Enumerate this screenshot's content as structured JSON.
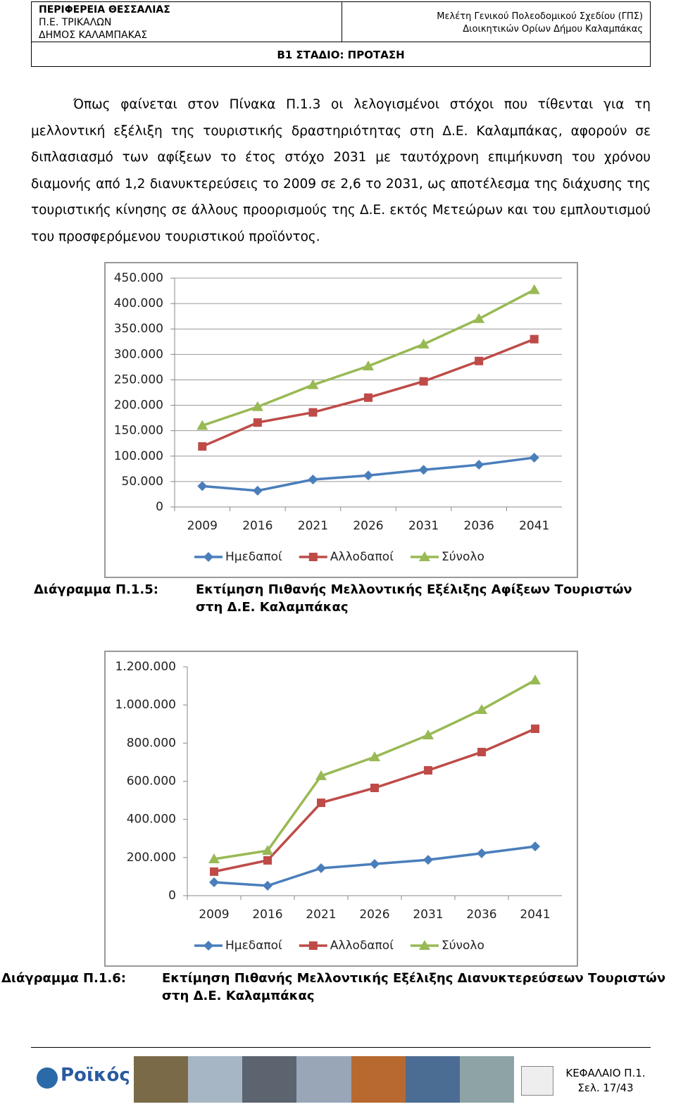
{
  "header": {
    "left": [
      "ΠΕΡΙΦΕΡΕΙΑ ΘΕΣΣΑΛΙΑΣ",
      "Π.Ε. ΤΡΙΚΑΛΩΝ",
      "ΔΗΜΟΣ ΚΑΛΑΜΠΑΚΑΣ"
    ],
    "right": [
      "Μελέτη Γενικού Πολεοδομικού Σχεδίου (ΓΠΣ)",
      "Διοικητικών Ορίων Δήμου Καλαμπάκας"
    ],
    "stage": "Β1 ΣΤΑΔΙΟ: ΠΡΟΤΑΣΗ"
  },
  "paragraph": "Όπως φαίνεται στον Πίνακα Π.1.3 οι λελογισμένοι στόχοι που τίθενται για τη μελλοντική εξέλιξη της τουριστικής δραστηριότητας στη Δ.Ε. Καλαμπάκας, αφορούν σε διπλασιασμό των αφίξεων το έτος στόχο 2031 με ταυτόχρονη επιμήκυνση του χρόνου διαμονής από 1,2 διανυκτερεύσεις το 2009 σε 2,6 το 2031, ως αποτέλεσμα της διάχυσης της τουριστικής κίνησης σε άλλους προορισμούς της Δ.Ε. εκτός Μετεώρων και του εμπλουτισμού του προσφερόμενου τουριστικού προϊόντος.",
  "captions": [
    {
      "label": "Διάγραμμα Π.1.5:",
      "text": "Εκτίμηση Πιθανής Μελλοντικής Εξέλιξης Αφίξεων Τουριστών στη Δ.Ε. Καλαμπάκας"
    },
    {
      "label": "Διάγραμμα Π.1.6:",
      "text": "Εκτίμηση Πιθανής Μελλοντικής Εξέλιξης Διανυκτερεύσεων Τουριστών στη Δ.Ε. Καλαμπάκας"
    }
  ],
  "chart_data": [
    {
      "type": "line",
      "categories": [
        "2009",
        "2016",
        "2021",
        "2026",
        "2031",
        "2036",
        "2041"
      ],
      "ylim": [
        0,
        450000
      ],
      "yticks": [
        0,
        {
          "value": 50000,
          "label": "50.000"
        },
        {
          "value": 100000,
          "label": "100.000"
        },
        {
          "value": 150000,
          "label": "150.000"
        },
        {
          "value": 200000,
          "label": "200.000"
        },
        {
          "value": 250000,
          "label": "250.000"
        },
        {
          "value": 300000,
          "label": "300.000"
        },
        {
          "value": 350000,
          "label": "350.000"
        },
        {
          "value": 400000,
          "label": "400.000"
        },
        {
          "value": 450000,
          "label": "450.000"
        }
      ],
      "grid": true,
      "legend": "bottom",
      "series": [
        {
          "name": "Ημεδαποί",
          "color": "#4a7ebb",
          "marker": "diamond",
          "values": [
            41000,
            32000,
            54000,
            62000,
            73000,
            83000,
            97000
          ]
        },
        {
          "name": "Αλλοδαποί",
          "color": "#be4b48",
          "marker": "square",
          "values": [
            119000,
            166000,
            186000,
            215000,
            247000,
            287000,
            330000
          ]
        },
        {
          "name": "Σύνολο",
          "color": "#98b954",
          "marker": "triangle",
          "values": [
            160000,
            197000,
            240000,
            277000,
            320000,
            370000,
            427000
          ]
        }
      ]
    },
    {
      "type": "line",
      "categories": [
        "2009",
        "2016",
        "2021",
        "2026",
        "2031",
        "2036",
        "2041"
      ],
      "ylim": [
        0,
        1200000
      ],
      "yticks": [
        0,
        {
          "value": 200000,
          "label": "200.000"
        },
        {
          "value": 400000,
          "label": "400.000"
        },
        {
          "value": 600000,
          "label": "600.000"
        },
        {
          "value": 800000,
          "label": "800.000"
        },
        {
          "value": 1000000,
          "label": "1.000.000"
        },
        {
          "value": 1200000,
          "label": "1.200.000"
        }
      ],
      "grid": false,
      "legend": "bottom",
      "series": [
        {
          "name": "Ημεδαποί",
          "color": "#4a7ebb",
          "marker": "diamond",
          "values": [
            70000,
            52000,
            144000,
            166000,
            188000,
            222000,
            258000
          ]
        },
        {
          "name": "Αλλοδαποί",
          "color": "#be4b48",
          "marker": "square",
          "values": [
            126000,
            185000,
            487000,
            565000,
            657000,
            753000,
            875000
          ]
        },
        {
          "name": "Σύνολο",
          "color": "#98b954",
          "marker": "triangle",
          "values": [
            192000,
            236000,
            628000,
            727000,
            842000,
            975000,
            1130000
          ]
        }
      ]
    }
  ],
  "footer": {
    "logo": "Ροϊκός",
    "chapter": "ΚΕΦΑΛΑΙΟ Π.1.",
    "page": "Σελ. 17/43"
  }
}
